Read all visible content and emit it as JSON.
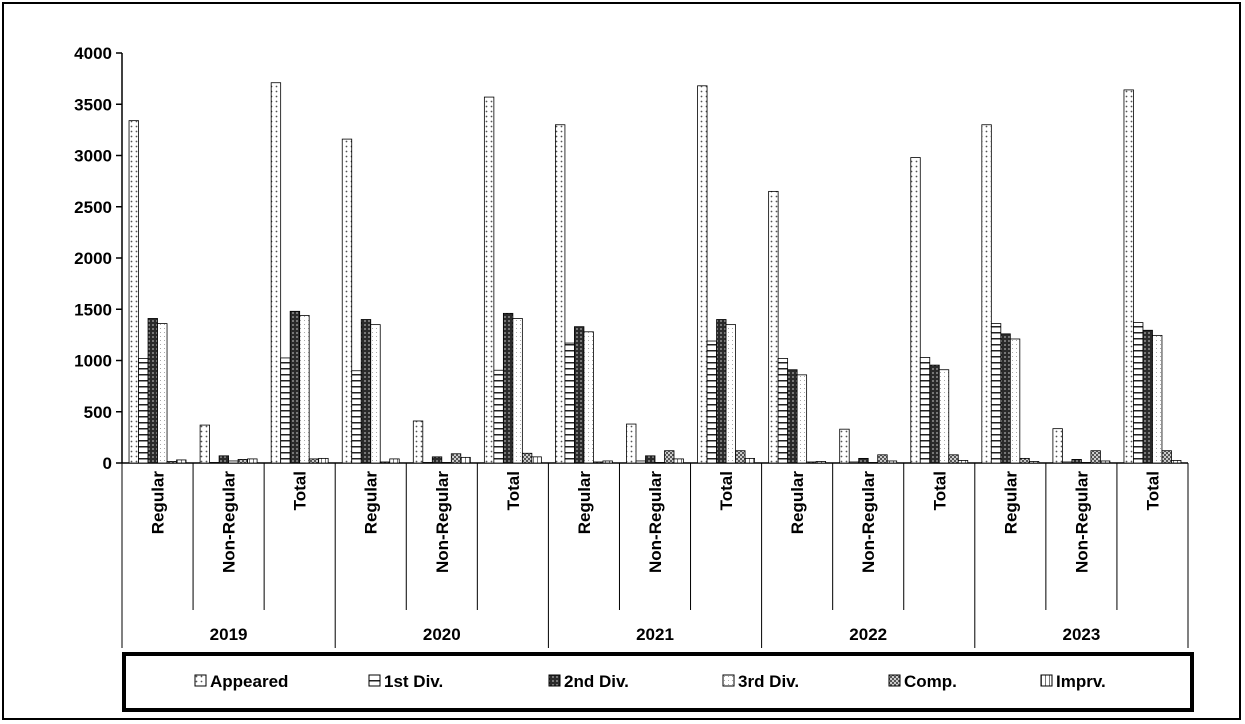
{
  "chart_data": {
    "type": "bar",
    "title": "",
    "xlabel": "",
    "ylabel": "",
    "ylim": [
      0,
      4000
    ],
    "yticks": [
      "0",
      "500",
      "1000",
      "1500",
      "2000",
      "2500",
      "3000",
      "3500",
      "4000"
    ],
    "grid": false,
    "legend_position": "bottom",
    "groups": [
      {
        "label": "2019",
        "categories": [
          "Regular",
          "Non-Regular",
          "Total"
        ]
      },
      {
        "label": "2020",
        "categories": [
          "Regular",
          "Non-Regular",
          "Total"
        ]
      },
      {
        "label": "2021",
        "categories": [
          "Regular",
          "Non-Regular",
          "Total"
        ]
      },
      {
        "label": "2022",
        "categories": [
          "Regular",
          "Non-Regular",
          "Total"
        ]
      },
      {
        "label": "2023",
        "categories": [
          "Regular",
          "Non-Regular",
          "Total"
        ]
      }
    ],
    "series": [
      {
        "name": "Appeared",
        "pattern": "dots",
        "values": [
          3340,
          370,
          3710,
          3160,
          410,
          3570,
          3300,
          380,
          3680,
          2650,
          330,
          2980,
          3300,
          335,
          3640
        ]
      },
      {
        "name": "1st Div.",
        "pattern": "hlines",
        "values": [
          1020,
          5,
          1025,
          900,
          5,
          905,
          1170,
          20,
          1190,
          1020,
          10,
          1030,
          1360,
          10,
          1370
        ]
      },
      {
        "name": "2nd Div.",
        "pattern": "dark",
        "values": [
          1410,
          70,
          1480,
          1400,
          60,
          1460,
          1330,
          70,
          1400,
          910,
          45,
          955,
          1260,
          35,
          1295
        ]
      },
      {
        "name": "3rd Div.",
        "pattern": "light",
        "values": [
          1360,
          20,
          1440,
          1350,
          5,
          1410,
          1280,
          5,
          1350,
          860,
          5,
          910,
          1210,
          5,
          1245
        ]
      },
      {
        "name": "Comp.",
        "pattern": "check",
        "values": [
          15,
          35,
          40,
          10,
          90,
          95,
          10,
          120,
          120,
          10,
          80,
          80,
          45,
          120,
          120
        ]
      },
      {
        "name": "Imprv.",
        "pattern": "vlines",
        "values": [
          30,
          40,
          45,
          40,
          55,
          60,
          20,
          40,
          45,
          15,
          20,
          25,
          15,
          20,
          25
        ]
      }
    ]
  }
}
